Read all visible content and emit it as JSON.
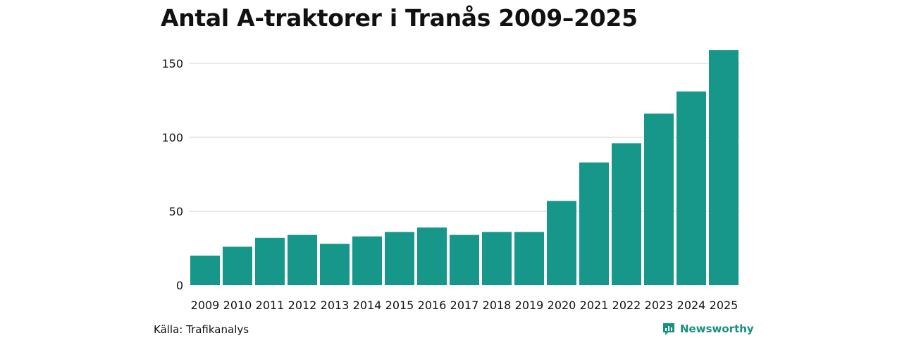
{
  "title": "Antal A-traktorer i Tranås 2009–2025",
  "source": "Källa: Trafikanalys",
  "brand": {
    "label": "Newsworthy",
    "icon": "newsworthy-logo-icon",
    "color": "#16917f"
  },
  "chart_data": {
    "type": "bar",
    "title": "Antal A-traktorer i Tranås 2009–2025",
    "xlabel": "",
    "ylabel": "",
    "categories": [
      "2009",
      "2010",
      "2011",
      "2012",
      "2013",
      "2014",
      "2015",
      "2016",
      "2017",
      "2018",
      "2019",
      "2020",
      "2021",
      "2022",
      "2023",
      "2024",
      "2025"
    ],
    "values": [
      20,
      26,
      32,
      34,
      28,
      33,
      36,
      39,
      34,
      36,
      36,
      57,
      83,
      96,
      116,
      131,
      159
    ],
    "ylim": [
      0,
      160
    ],
    "yticks": [
      0,
      50,
      100,
      150
    ],
    "grid": true,
    "bar_color": "#16978a",
    "grid_color": "#dcdcdc"
  }
}
